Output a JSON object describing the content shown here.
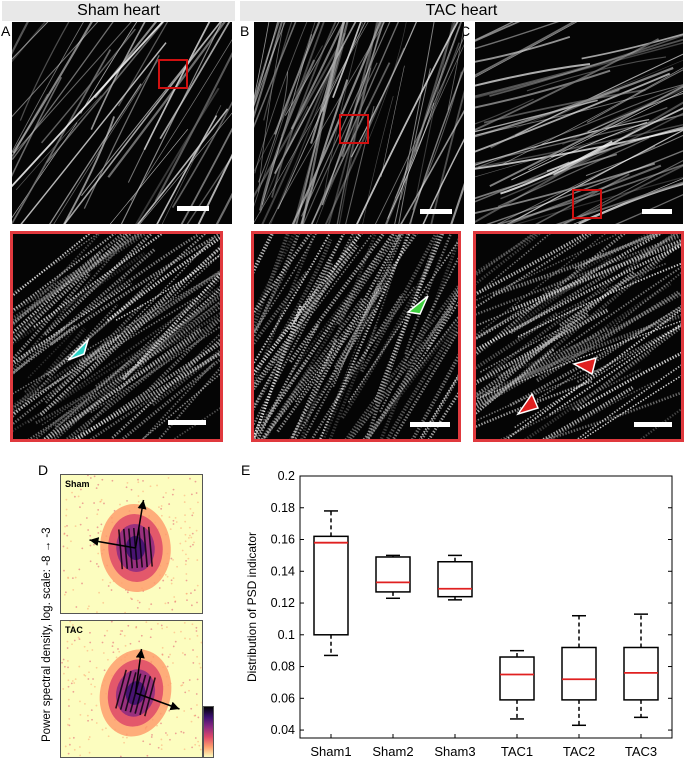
{
  "headers": {
    "sham": "Sham heart",
    "tac": "TAC heart"
  },
  "panel_labels": {
    "a": "A",
    "b": "B",
    "c": "C",
    "d": "D",
    "e": "E"
  },
  "psd": {
    "sham_tag": "Sham",
    "tac_tag": "TAC",
    "ylabel": "Power spectral density, log. scale: -8 → -3",
    "colormap": [
      "#000004",
      "#3b0f70",
      "#8c2981",
      "#de4968",
      "#fe9f6d",
      "#fcfdbf"
    ]
  },
  "arrowhead_colors": {
    "sham": "#2fd3c8",
    "tac_b": "#3ecf3e",
    "tac_c": "#e02020"
  },
  "chart_data": {
    "type": "box",
    "title": "",
    "xlabel": "",
    "ylabel": "Distribution of PSD indicator",
    "ylim": [
      0.035,
      0.2
    ],
    "yticks": [
      0.04,
      0.06,
      0.08,
      0.1,
      0.12,
      0.14,
      0.16,
      0.18,
      0.2
    ],
    "ytick_labels": [
      "0.04",
      "0.06",
      "0.08",
      "0.1",
      "0.12",
      "0.14",
      "0.16",
      "0.18",
      "0.2"
    ],
    "categories": [
      "Sham1",
      "Sham2",
      "Sham3",
      "TAC1",
      "TAC2",
      "TAC3"
    ],
    "boxes": [
      {
        "min": 0.087,
        "q1": 0.1,
        "median": 0.158,
        "q3": 0.162,
        "max": 0.178
      },
      {
        "min": 0.123,
        "q1": 0.127,
        "median": 0.133,
        "q3": 0.149,
        "max": 0.15
      },
      {
        "min": 0.122,
        "q1": 0.124,
        "median": 0.129,
        "q3": 0.146,
        "max": 0.15
      },
      {
        "min": 0.047,
        "q1": 0.059,
        "median": 0.075,
        "q3": 0.086,
        "max": 0.09
      },
      {
        "min": 0.043,
        "q1": 0.059,
        "median": 0.072,
        "q3": 0.092,
        "max": 0.112
      },
      {
        "min": 0.048,
        "q1": 0.059,
        "median": 0.076,
        "q3": 0.092,
        "max": 0.113
      }
    ],
    "median_color": "#e02020",
    "grid": false
  }
}
